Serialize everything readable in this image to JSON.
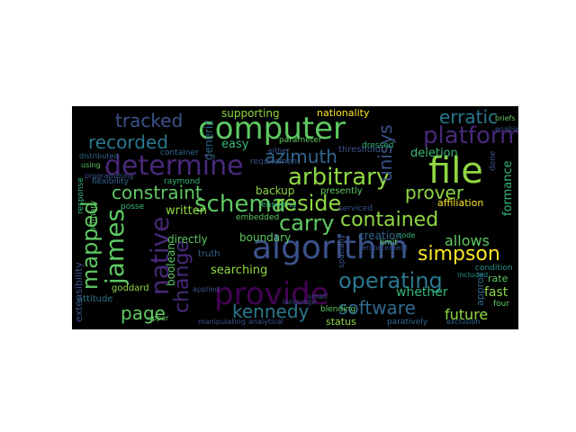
{
  "palette": {
    "background": "#000000",
    "page": "#ffffff",
    "colors": [
      "#3b528b",
      "#21918c",
      "#5ec962",
      "#fde725",
      "#440154",
      "#31688e",
      "#35b779",
      "#2a788e",
      "#482878",
      "#90d743"
    ]
  },
  "words": {
    "computer": "computer",
    "file": "file",
    "determine": "determine",
    "algorithm": "algorithm",
    "provide": "provide",
    "platform": "platform",
    "arbitrary": "arbitrary",
    "schema": "schema",
    "reside": "reside",
    "carry": "carry",
    "contained": "contained",
    "operating": "operating",
    "software": "software",
    "kennedy": "kennedy",
    "simpson": "simpson",
    "james": "james",
    "mapped": "mapped",
    "native": "native",
    "page": "page",
    "constraint": "constraint",
    "prover": "prover",
    "azimuth": "azimuth",
    "recorded": "recorded",
    "tracked": "tracked",
    "erratic": "erratic",
    "unisys": "unisys",
    "change": "change",
    "allows": "allows",
    "future": "future",
    "whether": "whether",
    "deletion": "deletion",
    "written": "written",
    "boundary": "boundary",
    "creation": "creation",
    "directly": "directly",
    "searching": "searching",
    "affiliation": "affiliation",
    "formance": "formance",
    "fast": "fast",
    "rate": "rate",
    "status": "status",
    "supporting": "supporting",
    "nationality": "nationality",
    "easy": "easy",
    "generic": "generic",
    "backup": "backup",
    "goddard": "goddard",
    "boolean": "boolean",
    "attitude": "attitude",
    "extensibility": "extensibility",
    "truth": "truth",
    "embedded": "embedded",
    "ensuring": "ensuring",
    "container": "container",
    "raymond": "raymond",
    "flexibility": "flexibility",
    "posse": "posse",
    "primary": "primary",
    "response": "response",
    "parameter": "parameter",
    "requirement": "requirement",
    "dressed": "dressed",
    "presently": "presently",
    "threshold": "threshold",
    "serviced": "serviced",
    "limit": "limit",
    "code": "code",
    "approx": "approx",
    "condition": "condition",
    "four": "four",
    "blending": "blending",
    "paratively": "paratively",
    "exclusion": "exclusion",
    "language": "language",
    "manipulating": "manipulating",
    "analytical": "analytical",
    "upper": "upper",
    "using": "using",
    "distributed": "distributed",
    "either": "either",
    "small": "small",
    "enforcement": "enforcement",
    "applied": "applied",
    "programming": "programming",
    "included": "included",
    "spatially": "spatially",
    "done": "done",
    "enable": "enable",
    "briefs": "briefs"
  }
}
